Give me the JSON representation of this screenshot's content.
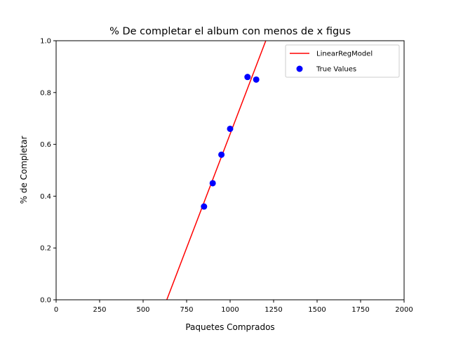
{
  "chart_data": {
    "type": "scatter",
    "title": "% De completar el album con menos de x figus",
    "xlabel": "Paquetes Comprados",
    "ylabel": "% de Completar",
    "xlim": [
      0,
      2000
    ],
    "ylim": [
      0.0,
      1.0
    ],
    "xticks": [
      0,
      250,
      500,
      750,
      1000,
      1250,
      1500,
      1750,
      2000
    ],
    "yticks": [
      0.0,
      0.2,
      0.4,
      0.6,
      0.8,
      1.0
    ],
    "ytick_labels": [
      "0.0",
      "0.2",
      "0.4",
      "0.6",
      "0.8",
      "1.0"
    ],
    "grid": false,
    "legend_position": "top-right",
    "series": [
      {
        "name": "LinearRegModel",
        "kind": "line",
        "color": "#ff0000",
        "x": [
          636,
          1205
        ],
        "y": [
          0.0,
          1.0
        ]
      },
      {
        "name": "True Values",
        "kind": "scatter",
        "color": "#0000ff",
        "x": [
          850,
          900,
          950,
          1000,
          1100,
          1150
        ],
        "y": [
          0.36,
          0.45,
          0.56,
          0.66,
          0.86,
          0.85
        ]
      }
    ]
  }
}
